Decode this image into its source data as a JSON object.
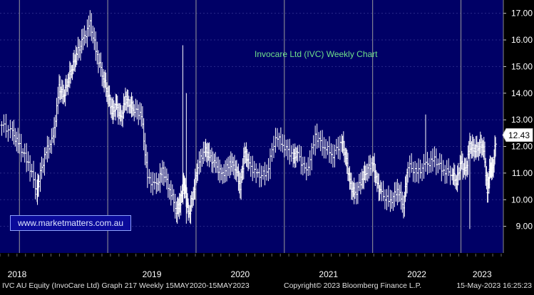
{
  "chart_data": {
    "type": "ohlc",
    "title": "Invocare Ltd (IVC) Weekly Chart",
    "watermark": "www.marketmatters.com.au",
    "y_ticks": [
      "17.00",
      "16.00",
      "15.00",
      "14.00",
      "13.00",
      "12.00",
      "11.00",
      "10.00",
      "9.00"
    ],
    "y_tick_values": [
      17,
      16,
      15,
      14,
      13,
      12,
      11,
      10,
      9
    ],
    "ylim": [
      8.0,
      17.5
    ],
    "x_year_labels": [
      "2018",
      "2019",
      "2020",
      "2021",
      "2022",
      "2023"
    ],
    "x_year_dividers": [
      2018.0,
      2019.0,
      2020.0,
      2021.0,
      2022.0,
      2023.0
    ],
    "xlim": [
      2017.78,
      2023.48
    ],
    "last_price": "12.43",
    "last_price_value": 12.43,
    "grid": true,
    "colors": {
      "background": "#000066",
      "bars": "#ffffff",
      "grid": "#2a2a8a",
      "title": "#6fe08a",
      "last_price_box": "#ffffff"
    },
    "series_x": [
      2017.8,
      2017.92,
      2018.0,
      2018.1,
      2018.2,
      2018.22,
      2018.3,
      2018.38,
      2018.45,
      2018.5,
      2018.55,
      2018.6,
      2018.65,
      2018.72,
      2018.8,
      2018.88,
      2018.95,
      2019.0,
      2019.05,
      2019.1,
      2019.15,
      2019.2,
      2019.25,
      2019.3,
      2019.38,
      2019.45,
      2019.55,
      2019.62,
      2019.7,
      2019.78,
      2019.82,
      2019.86,
      2019.88,
      2019.92,
      2019.97,
      2020.02,
      2020.1,
      2020.15,
      2020.22,
      2020.3,
      2020.38,
      2020.45,
      2020.5,
      2020.55,
      2020.6,
      2020.7,
      2020.8,
      2020.9,
      2021.0,
      2021.1,
      2021.15,
      2021.25,
      2021.35,
      2021.45,
      2021.55,
      2021.65,
      2021.7,
      2021.75,
      2021.8,
      2021.88,
      2021.93,
      2022.0,
      2022.05,
      2022.1,
      2022.2,
      2022.28,
      2022.35,
      2022.4,
      2022.5,
      2022.6,
      2022.7,
      2022.8,
      2022.9,
      2022.95,
      2023.0,
      2023.05,
      2023.1,
      2023.15,
      2023.2,
      2023.25,
      2023.3,
      2023.33,
      2023.36,
      2023.4
    ],
    "series_close": [
      12.8,
      12.5,
      12.0,
      11.4,
      10.3,
      10.8,
      11.8,
      12.3,
      14.2,
      13.9,
      14.5,
      15.0,
      15.5,
      16.0,
      16.6,
      15.4,
      14.6,
      14.0,
      13.3,
      13.5,
      13.0,
      13.8,
      13.6,
      13.4,
      13.2,
      10.8,
      10.5,
      11.1,
      10.4,
      9.6,
      9.9,
      10.6,
      10.3,
      9.4,
      10.3,
      11.3,
      11.9,
      11.6,
      11.3,
      10.9,
      11.4,
      11.2,
      10.5,
      11.8,
      11.3,
      10.9,
      11.0,
      12.4,
      12.0,
      11.6,
      11.7,
      11.0,
      12.4,
      12.0,
      11.7,
      12.2,
      11.5,
      10.5,
      10.2,
      10.8,
      11.1,
      11.4,
      10.6,
      10.2,
      9.9,
      10.4,
      9.8,
      11.3,
      11.0,
      11.3,
      11.5,
      11.1,
      11.0,
      10.7,
      11.4,
      11.0,
      12.0,
      11.9,
      12.0,
      12.1,
      10.3,
      11.2,
      11.1,
      12.43
    ]
  }
}
